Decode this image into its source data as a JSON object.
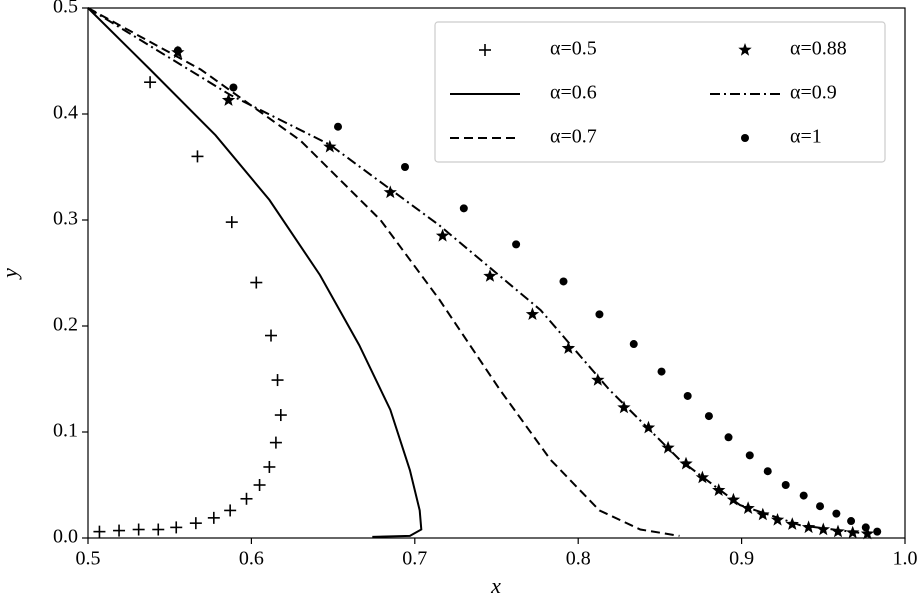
{
  "chart_data": {
    "type": "line",
    "xlabel": "x",
    "ylabel": "y",
    "xlim": [
      0.5,
      1.0
    ],
    "ylim": [
      0,
      0.5
    ],
    "xticks": [
      0.5,
      0.6,
      0.7,
      0.8,
      0.9,
      {
        "value": 1,
        "label": "1.0"
      }
    ],
    "yticks": [
      {
        "value": 0,
        "label": "0.0"
      },
      0.1,
      0.2,
      0.3,
      0.4,
      0.5
    ],
    "legend": "upper right",
    "series": [
      {
        "name": "α=0.5",
        "color": "#000000",
        "style": "plus",
        "x": [
          0.538,
          0.567,
          0.588,
          0.603,
          0.612,
          0.616,
          0.618,
          0.615,
          0.611,
          0.605,
          0.597,
          0.587,
          0.577,
          0.566,
          0.554,
          0.543,
          0.531,
          0.519,
          0.507
        ],
        "values": [
          0.43,
          0.36,
          0.298,
          0.241,
          0.191,
          0.149,
          0.116,
          0.09,
          0.067,
          0.05,
          0.037,
          0.026,
          0.019,
          0.014,
          0.01,
          0.008,
          0.008,
          0.007,
          0.006
        ]
      },
      {
        "name": "α=0.6",
        "color": "#000000",
        "style": "solid",
        "x": [
          0.5,
          0.538,
          0.578,
          0.611,
          0.642,
          0.666,
          0.685,
          0.697,
          0.703,
          0.704,
          0.697,
          0.674
        ],
        "values": [
          0.5,
          0.442,
          0.38,
          0.319,
          0.248,
          0.182,
          0.121,
          0.064,
          0.026,
          0.008,
          0.002,
          0.001
        ]
      },
      {
        "name": "α=0.7",
        "color": "#000000",
        "style": "dashed",
        "x": [
          0.5,
          0.569,
          0.63,
          0.679,
          0.715,
          0.752,
          0.783,
          0.813,
          0.838,
          0.862
        ],
        "values": [
          0.5,
          0.442,
          0.375,
          0.3,
          0.225,
          0.14,
          0.074,
          0.026,
          0.008,
          0.002
        ]
      },
      {
        "name": "α=0.88",
        "color": "#000000",
        "style": "star",
        "x": [
          0.555,
          0.586,
          0.648,
          0.685,
          0.717,
          0.746,
          0.772,
          0.794,
          0.812,
          0.828,
          0.843,
          0.855,
          0.866,
          0.876,
          0.886,
          0.895,
          0.904,
          0.913,
          0.922,
          0.931,
          0.941,
          0.95,
          0.959,
          0.968,
          0.977
        ],
        "values": [
          0.458,
          0.413,
          0.369,
          0.326,
          0.285,
          0.247,
          0.211,
          0.179,
          0.149,
          0.123,
          0.104,
          0.085,
          0.07,
          0.057,
          0.045,
          0.036,
          0.028,
          0.022,
          0.017,
          0.013,
          0.01,
          0.008,
          0.006,
          0.005,
          0.004
        ]
      },
      {
        "name": "α=0.9",
        "color": "#000000",
        "style": "dashdot",
        "x": [
          0.5,
          0.587,
          0.648,
          0.715,
          0.777,
          0.819,
          0.862,
          0.899,
          0.936,
          0.972
        ],
        "values": [
          0.5,
          0.418,
          0.371,
          0.295,
          0.215,
          0.14,
          0.074,
          0.031,
          0.012,
          0.005
        ]
      },
      {
        "name": "α=1",
        "color": "#000000",
        "style": "dot",
        "x": [
          0.555,
          0.589,
          0.653,
          0.694,
          0.73,
          0.762,
          0.791,
          0.813,
          0.834,
          0.851,
          0.867,
          0.88,
          0.892,
          0.905,
          0.916,
          0.927,
          0.938,
          0.948,
          0.958,
          0.967,
          0.976,
          0.983
        ],
        "values": [
          0.46,
          0.425,
          0.388,
          0.35,
          0.311,
          0.277,
          0.242,
          0.211,
          0.183,
          0.157,
          0.134,
          0.115,
          0.095,
          0.078,
          0.063,
          0.05,
          0.04,
          0.03,
          0.023,
          0.016,
          0.01,
          0.006
        ]
      }
    ]
  }
}
